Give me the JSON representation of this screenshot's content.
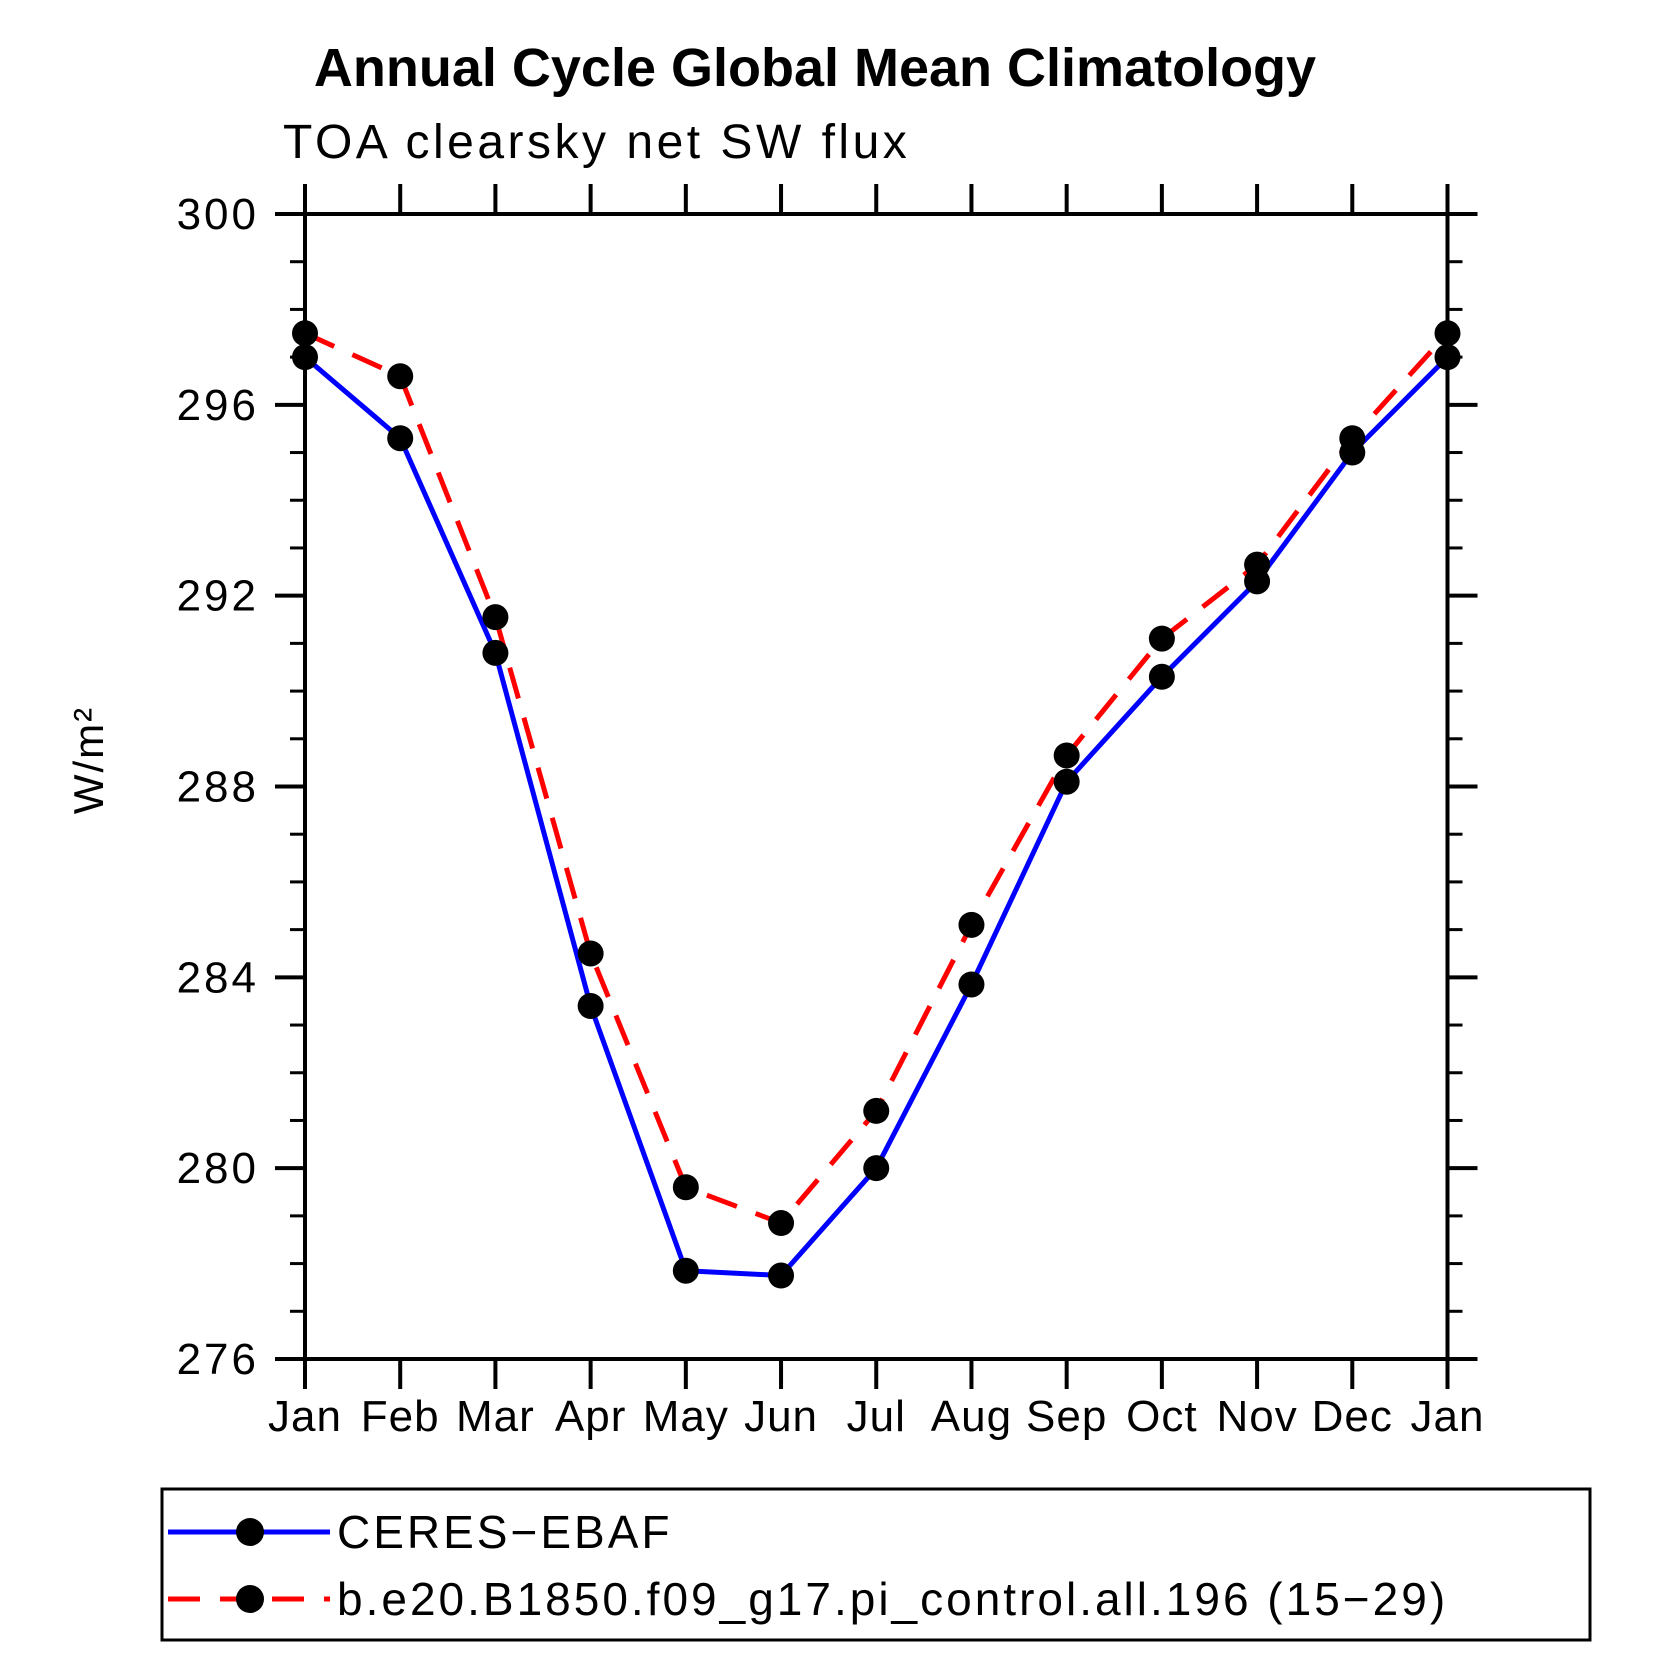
{
  "chart_data": {
    "type": "line",
    "title": "Annual Cycle Global Mean Climatology",
    "subtitle": "TOA clearsky net SW flux",
    "ylabel": "W/m²",
    "xlabel": "",
    "categories": [
      "Jan",
      "Feb",
      "Mar",
      "Apr",
      "May",
      "Jun",
      "Jul",
      "Aug",
      "Sep",
      "Oct",
      "Nov",
      "Dec",
      "Jan"
    ],
    "ylim": [
      276,
      300
    ],
    "yticks_major": [
      276,
      280,
      284,
      288,
      292,
      296,
      300
    ],
    "ytick_minor_step": 1,
    "grid": false,
    "legend_position": "bottom-left-box",
    "frame_color": "#000000",
    "marker_color": "#000000",
    "series": [
      {
        "name": "CERES−EBAF",
        "line_color": "#0000ff",
        "line_style": "solid",
        "marker": "circle",
        "values": [
          297.0,
          295.3,
          290.8,
          283.4,
          277.85,
          277.75,
          280.0,
          283.85,
          288.1,
          290.3,
          292.3,
          295.0,
          297.0
        ]
      },
      {
        "name": "b.e20.B1850.f09_g17.pi_control.all.196 (15−29)",
        "line_color": "#ff0000",
        "line_style": "dashed",
        "marker": "circle",
        "values": [
          297.5,
          296.6,
          291.55,
          284.5,
          279.6,
          278.85,
          281.2,
          285.1,
          288.65,
          291.1,
          292.65,
          295.3,
          297.5
        ]
      }
    ]
  }
}
